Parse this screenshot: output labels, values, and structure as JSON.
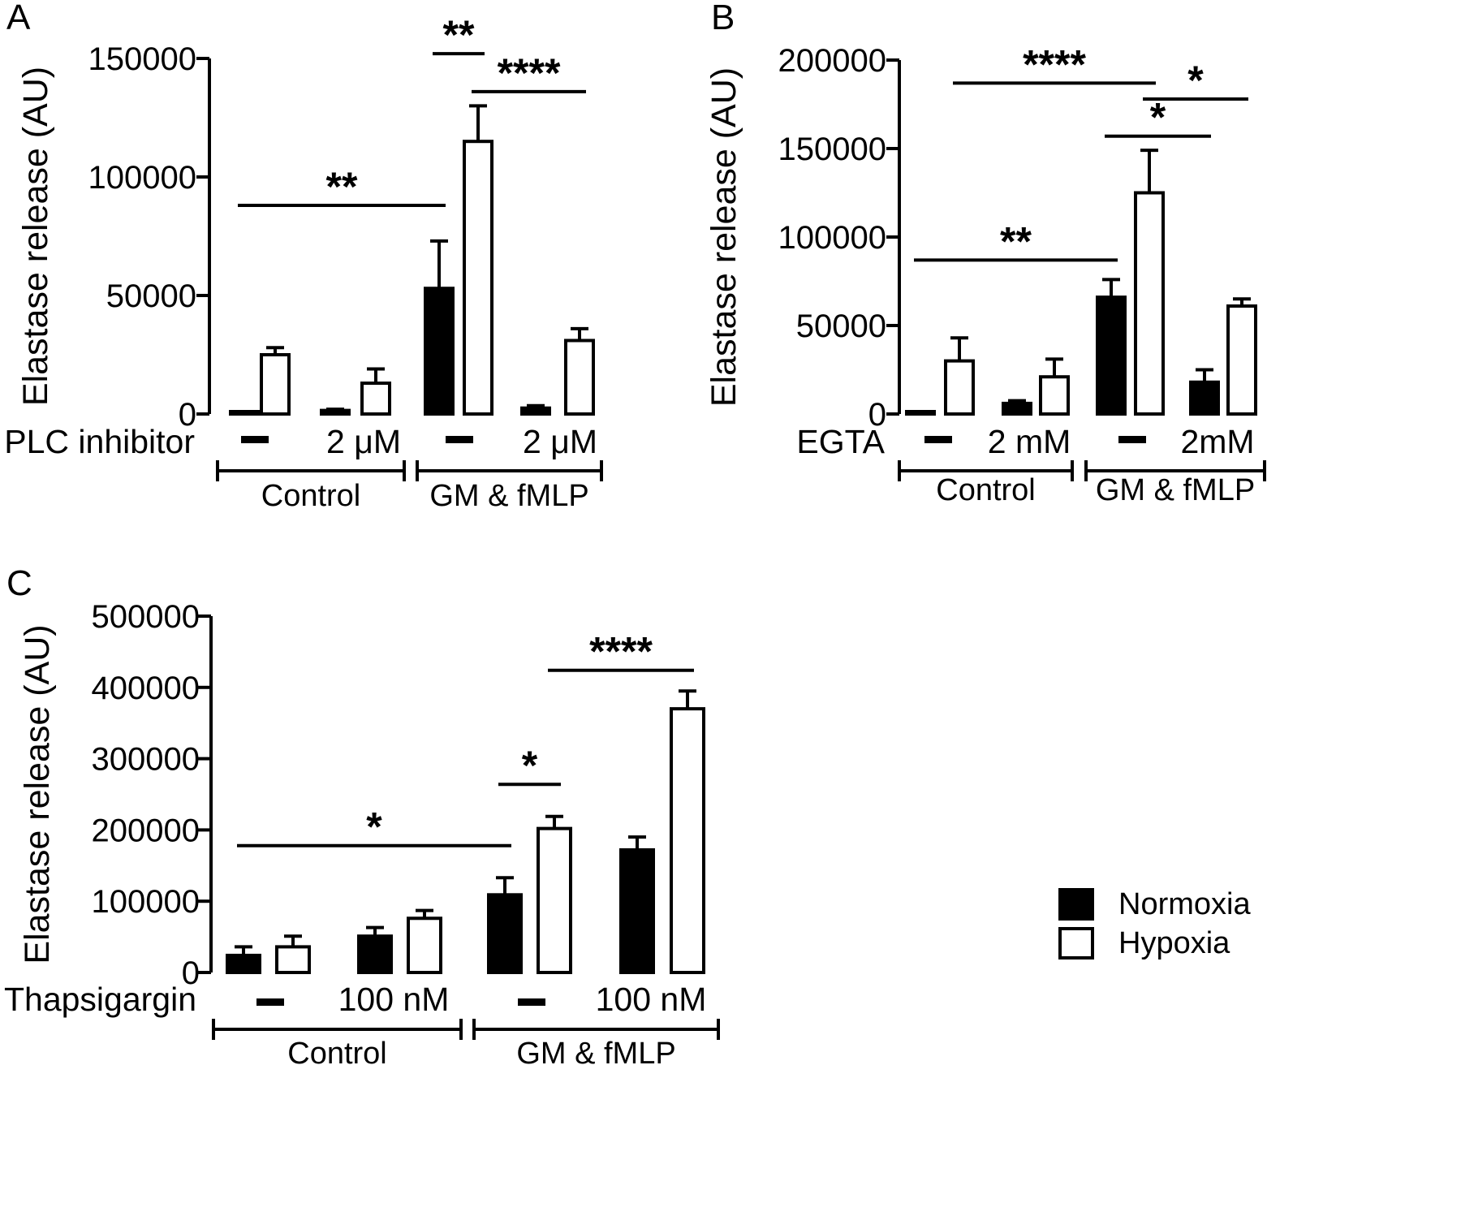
{
  "chart_data": [
    {
      "panel": "A",
      "type": "bar",
      "ylabel": "Elastase release (AU)",
      "ylim": [
        0,
        150000
      ],
      "yticks": [
        "0",
        "50000",
        "100000",
        "150000"
      ],
      "row_label": "PLC inhibitor",
      "categories": [
        "—",
        "2 μM",
        "—",
        "2 μM"
      ],
      "groups": [
        "Control",
        "GM & fMLP"
      ],
      "series": [
        {
          "name": "Normoxia",
          "values": [
            0,
            1500,
            53000,
            2500
          ],
          "errors": [
            0,
            500,
            20000,
            1000
          ]
        },
        {
          "name": "Hypoxia",
          "values": [
            25000,
            13000,
            115000,
            31000
          ],
          "errors": [
            3000,
            6000,
            15000,
            5000
          ]
        }
      ],
      "significance": [
        {
          "label": "**",
          "from": [
            0,
            "Normoxia"
          ],
          "to": [
            2,
            "Normoxia"
          ],
          "y": 88000
        },
        {
          "label": "**",
          "from": [
            2,
            "Normoxia"
          ],
          "to": [
            2,
            "Hypoxia"
          ],
          "y": 152000
        },
        {
          "label": "****",
          "from": [
            2,
            "Hypoxia"
          ],
          "to": [
            3,
            "Hypoxia"
          ],
          "y": 136000
        }
      ]
    },
    {
      "panel": "B",
      "type": "bar",
      "ylabel": "Elastase release (AU)",
      "ylim": [
        0,
        200000
      ],
      "yticks": [
        "0",
        "50000",
        "100000",
        "150000",
        "200000"
      ],
      "row_label": "EGTA",
      "categories": [
        "—",
        "2 mM",
        "—",
        "2mM"
      ],
      "groups": [
        "Control",
        "GM & fMLP"
      ],
      "series": [
        {
          "name": "Normoxia",
          "values": [
            500,
            6000,
            66000,
            18000
          ],
          "errors": [
            300,
            1500,
            10000,
            7000
          ]
        },
        {
          "name": "Hypoxia",
          "values": [
            30000,
            21000,
            125000,
            61000
          ],
          "errors": [
            13000,
            10000,
            24000,
            4000
          ]
        }
      ],
      "significance": [
        {
          "label": "**",
          "from": [
            0,
            "Normoxia"
          ],
          "to": [
            2,
            "Normoxia"
          ],
          "y": 87000
        },
        {
          "label": "****",
          "from": [
            0,
            "Hypoxia"
          ],
          "to": [
            2,
            "Hypoxia"
          ],
          "y": 187000
        },
        {
          "label": "*",
          "from": [
            2,
            "Normoxia"
          ],
          "to": [
            3,
            "Normoxia"
          ],
          "y": 157000
        },
        {
          "label": "*",
          "from": [
            2,
            "Hypoxia"
          ],
          "to": [
            3,
            "Hypoxia"
          ],
          "y": 178000
        }
      ]
    },
    {
      "panel": "C",
      "type": "bar",
      "ylabel": "Elastase release (AU)",
      "ylim": [
        0,
        500000
      ],
      "yticks": [
        "0",
        "100000",
        "200000",
        "300000",
        "400000",
        "500000"
      ],
      "row_label": "Thapsigargin",
      "categories": [
        "—",
        "100 nM",
        "—",
        "100 nM"
      ],
      "groups": [
        "Control",
        "GM & fMLP"
      ],
      "series": [
        {
          "name": "Normoxia",
          "values": [
            24000,
            51000,
            109000,
            172000
          ],
          "errors": [
            12000,
            12000,
            24000,
            18000
          ]
        },
        {
          "name": "Hypoxia",
          "values": [
            36000,
            76000,
            202000,
            370000
          ],
          "errors": [
            15000,
            11000,
            17000,
            25000
          ]
        }
      ],
      "significance": [
        {
          "label": "*",
          "from": [
            0,
            "Normoxia"
          ],
          "to": [
            2,
            "Normoxia"
          ],
          "y": 178000
        },
        {
          "label": "*",
          "from": [
            2,
            "Normoxia"
          ],
          "to": [
            2,
            "Hypoxia"
          ],
          "y": 264000
        },
        {
          "label": "****",
          "from": [
            2,
            "Hypoxia"
          ],
          "to": [
            3,
            "Hypoxia"
          ],
          "y": 424000
        }
      ]
    }
  ],
  "legend": [
    {
      "name": "Normoxia",
      "fill": "#000000"
    },
    {
      "name": "Hypoxia",
      "fill": "#ffffff"
    }
  ]
}
